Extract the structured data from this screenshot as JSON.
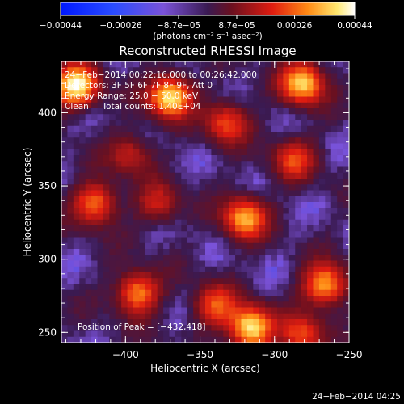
{
  "chart_data": {
    "type": "heatmap",
    "title": "Reconstructed RHESSI Image",
    "xlabel": "Heliocentric X (arcsec)",
    "ylabel": "Heliocentric Y (arcsec)",
    "xlim": [
      -443,
      -250
    ],
    "ylim": [
      243,
      435
    ],
    "xticks": [
      -400,
      -350,
      -300,
      -250
    ],
    "yticks": [
      250,
      300,
      350,
      400
    ],
    "xtick_labels": [
      "−400",
      "−350",
      "−300",
      "−250"
    ],
    "ytick_labels": [
      "250",
      "300",
      "350",
      "400"
    ],
    "colorbar": {
      "range": [
        -0.00044,
        0.00044
      ],
      "ticks": [
        -0.00044,
        -0.00026,
        -8.7e-05,
        8.7e-05,
        0.00026,
        0.00044
      ],
      "tick_labels": [
        "−0.00044",
        "−0.00026",
        "−8.7e−05",
        "8.7e−05",
        "0.00026",
        "0.00044"
      ],
      "label": "(photons cm⁻² s⁻¹ asec⁻²)",
      "colormap": "RHESSI blue-purple-red-yellow-white"
    },
    "annotations": [
      "24−Feb−2014 00:22:16.000 to 00:26:42.000",
      "Detectors: 3F 5F 6F 7F 8F 9F, Att 0",
      "Energy Range: 25.0 − 50.0 keV",
      "Clean     Total counts: 1.40E+04"
    ],
    "peak_label": "Position of Peak = [−432,418]",
    "peak_position": [
      -432,
      418
    ],
    "sources": [
      {
        "x": -433,
        "y": 418,
        "peak": 1.0
      },
      {
        "x": -370,
        "y": 411,
        "peak": 0.93
      },
      {
        "x": -332,
        "y": 393,
        "peak": 0.55
      },
      {
        "x": -281,
        "y": 420,
        "peak": 0.88
      },
      {
        "x": -287,
        "y": 368,
        "peak": 0.5
      },
      {
        "x": -397,
        "y": 372,
        "peak": 0.4
      },
      {
        "x": -420,
        "y": 338,
        "peak": 0.68
      },
      {
        "x": -378,
        "y": 338,
        "peak": 0.4
      },
      {
        "x": -320,
        "y": 328,
        "peak": 0.78
      },
      {
        "x": -392,
        "y": 277,
        "peak": 0.72
      },
      {
        "x": -340,
        "y": 268,
        "peak": 0.55
      },
      {
        "x": -316,
        "y": 253,
        "peak": 0.98
      },
      {
        "x": -266,
        "y": 282,
        "peak": 0.8
      },
      {
        "x": -282,
        "y": 248,
        "peak": 0.55
      }
    ]
  },
  "footer_date": "24−Feb−2014 04:25"
}
